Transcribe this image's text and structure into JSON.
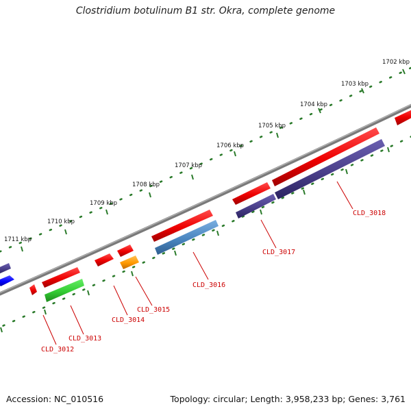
{
  "title": "Clostridium botulinum B1 str. Okra, complete genome",
  "footer": {
    "accession_label": "Accession:",
    "accession": "NC_010516",
    "topology_label": "Topology:",
    "topology": "circular",
    "length_label": "Length:",
    "length": "3,958,233 bp",
    "genes_label": "Genes:",
    "genes": "3,761"
  },
  "scale_labels": [
    "1702 kbp",
    "1703 kbp",
    "1704 kbp",
    "1705 kbp",
    "1706 kbp",
    "1707 kbp",
    "1708 kbp",
    "1709 kbp",
    "1710 kbp",
    "1711 kbp"
  ],
  "gene_labels": [
    "CLD_3012",
    "CLD_3013",
    "CLD_3014",
    "CLD_3015",
    "CLD_3016",
    "CLD_3017",
    "CLD_3018"
  ],
  "colors": {
    "cds_forward": "#ff0000",
    "cds_reverse": "#4b3f8a",
    "gene_blue": "#4a86c0",
    "gene_green": "#33cc33",
    "gene_orange": "#ff9900",
    "gene_bright_blue": "#0000ff",
    "backbone": "#777777",
    "tick": "#2a7a2a",
    "label": "#cc0000"
  }
}
